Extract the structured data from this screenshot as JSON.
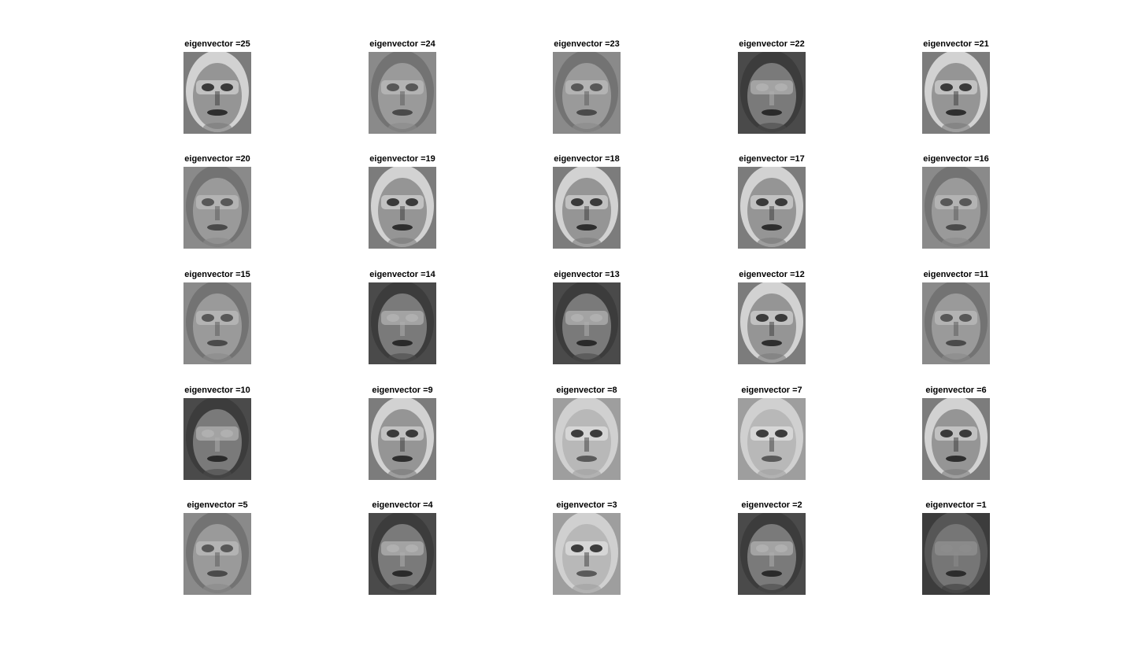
{
  "figure": {
    "rows": 5,
    "cols": 5,
    "subplots": [
      {
        "title": "eigenvector =25",
        "tone": "mixed"
      },
      {
        "title": "eigenvector =24",
        "tone": "mid"
      },
      {
        "title": "eigenvector =23",
        "tone": "mid"
      },
      {
        "title": "eigenvector =22",
        "tone": "dark"
      },
      {
        "title": "eigenvector =21",
        "tone": "mixed"
      },
      {
        "title": "eigenvector =20",
        "tone": "mid"
      },
      {
        "title": "eigenvector =19",
        "tone": "mixed"
      },
      {
        "title": "eigenvector =18",
        "tone": "mixed"
      },
      {
        "title": "eigenvector =17",
        "tone": "mixed"
      },
      {
        "title": "eigenvector =16",
        "tone": "mid"
      },
      {
        "title": "eigenvector =15",
        "tone": "mid"
      },
      {
        "title": "eigenvector =14",
        "tone": "dark"
      },
      {
        "title": "eigenvector =13",
        "tone": "dark"
      },
      {
        "title": "eigenvector =12",
        "tone": "mixed"
      },
      {
        "title": "eigenvector =11",
        "tone": "mid"
      },
      {
        "title": "eigenvector =10",
        "tone": "dark"
      },
      {
        "title": "eigenvector =9",
        "tone": "mixed"
      },
      {
        "title": "eigenvector =8",
        "tone": "light"
      },
      {
        "title": "eigenvector =7",
        "tone": "light"
      },
      {
        "title": "eigenvector =6",
        "tone": "mixed"
      },
      {
        "title": "eigenvector =5",
        "tone": "mid"
      },
      {
        "title": "eigenvector =4",
        "tone": "dark"
      },
      {
        "title": "eigenvector =3",
        "tone": "light"
      },
      {
        "title": "eigenvector =2",
        "tone": "dark"
      },
      {
        "title": "eigenvector =1",
        "tone": "darkest"
      }
    ]
  },
  "colors": {
    "background": "#ffffff",
    "title_text": "#000000"
  }
}
